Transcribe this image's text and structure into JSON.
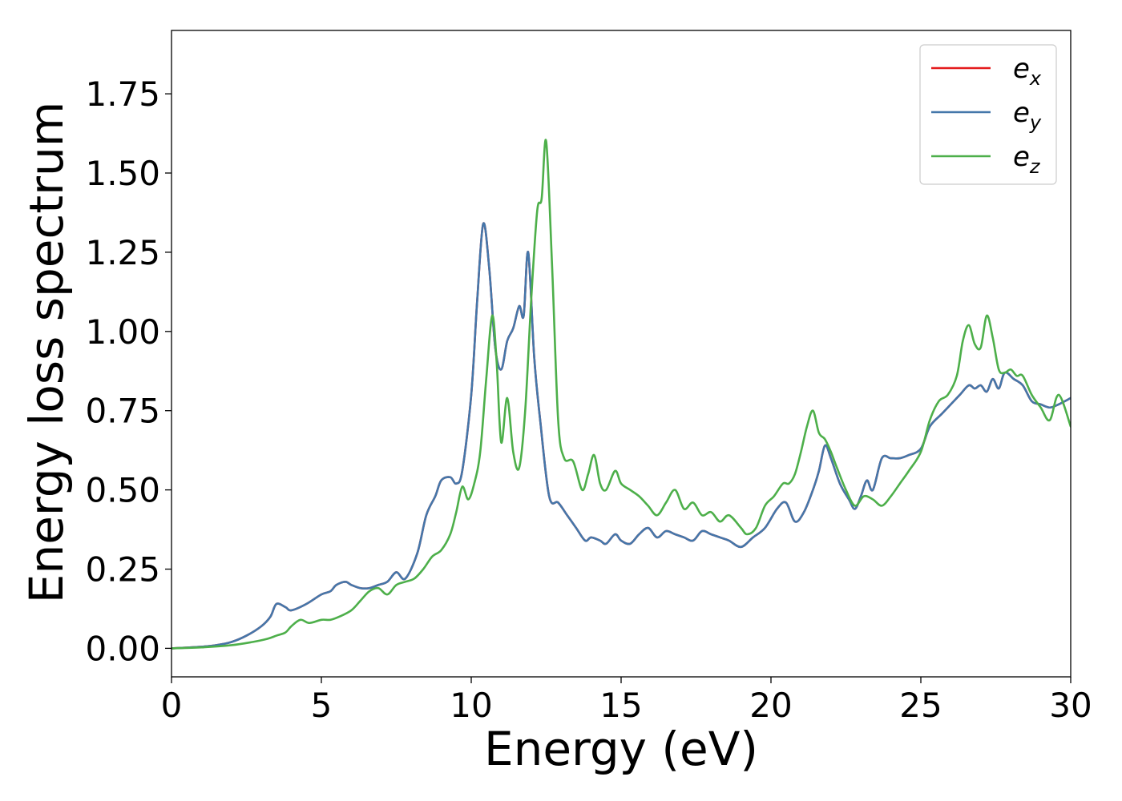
{
  "chart_data": {
    "type": "line",
    "title": "",
    "xlabel": "Energy (eV)",
    "ylabel": "Energy loss spectrum",
    "xlim": [
      0,
      30
    ],
    "ylim": [
      -0.09,
      1.95
    ],
    "xticks": [
      0,
      5,
      10,
      15,
      20,
      25,
      30
    ],
    "xtick_labels": [
      "0",
      "5",
      "10",
      "15",
      "20",
      "25",
      "30"
    ],
    "yticks": [
      0,
      0.25,
      0.5,
      0.75,
      1.0,
      1.25,
      1.5,
      1.75
    ],
    "ytick_labels": [
      "0.00",
      "0.25",
      "0.50",
      "0.75",
      "1.00",
      "1.25",
      "1.50",
      "1.75"
    ],
    "grid": false,
    "legend_position": "top-right",
    "series": [
      {
        "name": "e_x",
        "color": "#e41a1c",
        "x": [
          0,
          1,
          1.5,
          2,
          2.5,
          3,
          3.3,
          3.5,
          3.8,
          4,
          4.5,
          5,
          5.3,
          5.5,
          5.8,
          6,
          6.3,
          6.6,
          6.9,
          7.2,
          7.5,
          7.8,
          8.2,
          8.5,
          8.8,
          9,
          9.3,
          9.5,
          9.7,
          10,
          10.2,
          10.4,
          10.6,
          10.8,
          11,
          11.2,
          11.4,
          11.6,
          11.75,
          11.9,
          12.1,
          12.3,
          12.6,
          12.9,
          13.2,
          13.5,
          13.8,
          14,
          14.3,
          14.5,
          14.8,
          15,
          15.3,
          15.6,
          15.9,
          16.2,
          16.5,
          16.8,
          17.1,
          17.4,
          17.7,
          18,
          18.3,
          18.6,
          19,
          19.4,
          19.8,
          20.2,
          20.5,
          20.8,
          21.1,
          21.4,
          21.6,
          21.8,
          22,
          22.3,
          22.6,
          22.8,
          23,
          23.2,
          23.4,
          23.7,
          24,
          24.3,
          24.6,
          25,
          25.3,
          25.7,
          26,
          26.3,
          26.6,
          26.8,
          27,
          27.2,
          27.4,
          27.6,
          27.8,
          28.1,
          28.4,
          28.7,
          29,
          29.3,
          29.6,
          30
        ],
        "y": [
          0,
          0.005,
          0.01,
          0.02,
          0.04,
          0.07,
          0.1,
          0.14,
          0.13,
          0.12,
          0.14,
          0.17,
          0.18,
          0.2,
          0.21,
          0.2,
          0.19,
          0.19,
          0.2,
          0.21,
          0.24,
          0.22,
          0.3,
          0.42,
          0.48,
          0.53,
          0.54,
          0.52,
          0.56,
          0.8,
          1.1,
          1.34,
          1.2,
          0.95,
          0.88,
          0.97,
          1.01,
          1.08,
          1.05,
          1.25,
          0.92,
          0.72,
          0.48,
          0.46,
          0.42,
          0.38,
          0.34,
          0.35,
          0.34,
          0.33,
          0.36,
          0.34,
          0.33,
          0.36,
          0.38,
          0.35,
          0.37,
          0.36,
          0.35,
          0.34,
          0.37,
          0.36,
          0.35,
          0.34,
          0.32,
          0.35,
          0.38,
          0.44,
          0.46,
          0.4,
          0.43,
          0.5,
          0.56,
          0.64,
          0.6,
          0.52,
          0.47,
          0.44,
          0.48,
          0.53,
          0.5,
          0.6,
          0.6,
          0.6,
          0.61,
          0.63,
          0.7,
          0.74,
          0.77,
          0.8,
          0.83,
          0.82,
          0.83,
          0.81,
          0.85,
          0.82,
          0.87,
          0.85,
          0.83,
          0.78,
          0.77,
          0.76,
          0.77,
          0.79
        ]
      },
      {
        "name": "e_y",
        "color": "#4477aa",
        "x": [
          0,
          1,
          1.5,
          2,
          2.5,
          3,
          3.3,
          3.5,
          3.8,
          4,
          4.5,
          5,
          5.3,
          5.5,
          5.8,
          6,
          6.3,
          6.6,
          6.9,
          7.2,
          7.5,
          7.8,
          8.2,
          8.5,
          8.8,
          9,
          9.3,
          9.5,
          9.7,
          10,
          10.2,
          10.4,
          10.6,
          10.8,
          11,
          11.2,
          11.4,
          11.6,
          11.75,
          11.9,
          12.1,
          12.3,
          12.6,
          12.9,
          13.2,
          13.5,
          13.8,
          14,
          14.3,
          14.5,
          14.8,
          15,
          15.3,
          15.6,
          15.9,
          16.2,
          16.5,
          16.8,
          17.1,
          17.4,
          17.7,
          18,
          18.3,
          18.6,
          19,
          19.4,
          19.8,
          20.2,
          20.5,
          20.8,
          21.1,
          21.4,
          21.6,
          21.8,
          22,
          22.3,
          22.6,
          22.8,
          23,
          23.2,
          23.4,
          23.7,
          24,
          24.3,
          24.6,
          25,
          25.3,
          25.7,
          26,
          26.3,
          26.6,
          26.8,
          27,
          27.2,
          27.4,
          27.6,
          27.8,
          28.1,
          28.4,
          28.7,
          29,
          29.3,
          29.6,
          30
        ],
        "y": [
          0,
          0.005,
          0.01,
          0.02,
          0.04,
          0.07,
          0.1,
          0.14,
          0.13,
          0.12,
          0.14,
          0.17,
          0.18,
          0.2,
          0.21,
          0.2,
          0.19,
          0.19,
          0.2,
          0.21,
          0.24,
          0.22,
          0.3,
          0.42,
          0.48,
          0.53,
          0.54,
          0.52,
          0.56,
          0.8,
          1.1,
          1.34,
          1.2,
          0.95,
          0.88,
          0.97,
          1.01,
          1.08,
          1.05,
          1.25,
          0.92,
          0.72,
          0.48,
          0.46,
          0.42,
          0.38,
          0.34,
          0.35,
          0.34,
          0.33,
          0.36,
          0.34,
          0.33,
          0.36,
          0.38,
          0.35,
          0.37,
          0.36,
          0.35,
          0.34,
          0.37,
          0.36,
          0.35,
          0.34,
          0.32,
          0.35,
          0.38,
          0.44,
          0.46,
          0.4,
          0.43,
          0.5,
          0.56,
          0.64,
          0.6,
          0.52,
          0.47,
          0.44,
          0.48,
          0.53,
          0.5,
          0.6,
          0.6,
          0.6,
          0.61,
          0.63,
          0.7,
          0.74,
          0.77,
          0.8,
          0.83,
          0.82,
          0.83,
          0.81,
          0.85,
          0.82,
          0.87,
          0.85,
          0.83,
          0.78,
          0.77,
          0.76,
          0.77,
          0.79
        ]
      },
      {
        "name": "e_z",
        "color": "#4daf4a",
        "x": [
          0,
          1,
          2,
          2.7,
          3.2,
          3.5,
          3.8,
          4,
          4.3,
          4.6,
          5,
          5.3,
          5.6,
          6,
          6.3,
          6.6,
          6.9,
          7.2,
          7.5,
          7.8,
          8.1,
          8.4,
          8.7,
          9,
          9.3,
          9.5,
          9.7,
          9.9,
          10.1,
          10.3,
          10.5,
          10.7,
          10.85,
          11,
          11.2,
          11.4,
          11.6,
          11.8,
          12,
          12.2,
          12.35,
          12.5,
          12.7,
          12.9,
          13.1,
          13.4,
          13.7,
          13.9,
          14.1,
          14.3,
          14.5,
          14.8,
          15,
          15.3,
          15.6,
          15.9,
          16.2,
          16.5,
          16.8,
          17.1,
          17.4,
          17.7,
          18,
          18.3,
          18.6,
          19,
          19.2,
          19.5,
          19.8,
          20.1,
          20.4,
          20.6,
          20.8,
          21,
          21.2,
          21.4,
          21.6,
          21.8,
          22,
          22.2,
          22.5,
          22.8,
          23.1,
          23.4,
          23.7,
          24,
          24.3,
          24.6,
          25,
          25.3,
          25.6,
          25.9,
          26.2,
          26.4,
          26.6,
          26.8,
          27,
          27.2,
          27.4,
          27.6,
          27.8,
          28,
          28.2,
          28.4,
          28.7,
          29,
          29.3,
          29.6,
          30
        ],
        "y": [
          0,
          0.003,
          0.01,
          0.02,
          0.03,
          0.04,
          0.05,
          0.07,
          0.09,
          0.08,
          0.09,
          0.09,
          0.1,
          0.12,
          0.15,
          0.18,
          0.19,
          0.17,
          0.2,
          0.21,
          0.22,
          0.25,
          0.29,
          0.31,
          0.36,
          0.43,
          0.51,
          0.47,
          0.52,
          0.62,
          0.85,
          1.05,
          0.9,
          0.65,
          0.79,
          0.62,
          0.57,
          0.75,
          1.1,
          1.38,
          1.42,
          1.6,
          1.2,
          0.72,
          0.6,
          0.59,
          0.5,
          0.55,
          0.61,
          0.52,
          0.5,
          0.56,
          0.52,
          0.5,
          0.48,
          0.45,
          0.42,
          0.46,
          0.5,
          0.44,
          0.46,
          0.42,
          0.43,
          0.4,
          0.42,
          0.38,
          0.36,
          0.38,
          0.45,
          0.48,
          0.52,
          0.52,
          0.55,
          0.62,
          0.7,
          0.75,
          0.68,
          0.66,
          0.62,
          0.57,
          0.5,
          0.45,
          0.48,
          0.47,
          0.45,
          0.48,
          0.52,
          0.56,
          0.62,
          0.72,
          0.78,
          0.8,
          0.86,
          0.97,
          1.02,
          0.96,
          0.95,
          1.05,
          0.98,
          0.88,
          0.87,
          0.88,
          0.86,
          0.86,
          0.8,
          0.76,
          0.72,
          0.8,
          0.7
        ]
      }
    ]
  }
}
